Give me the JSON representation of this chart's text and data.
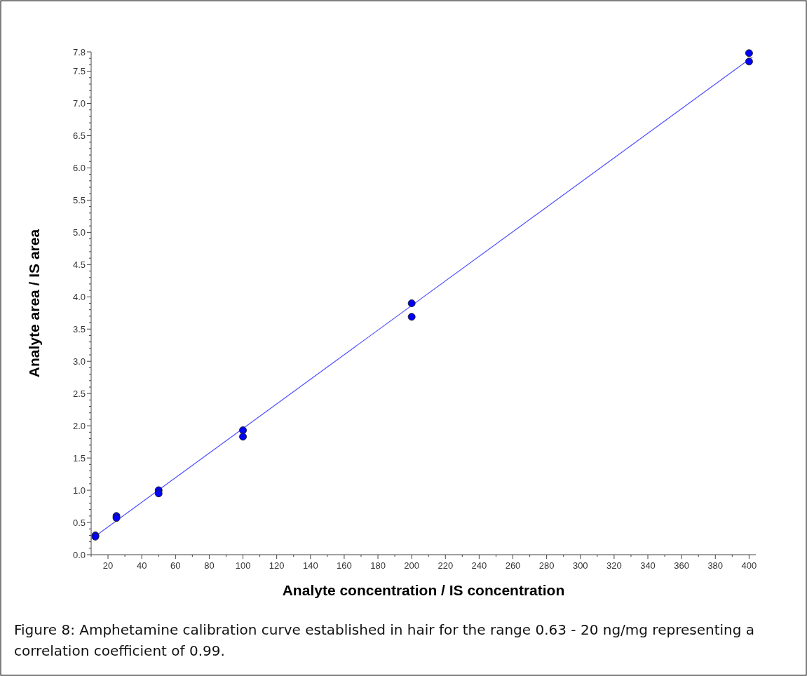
{
  "chart_data": {
    "type": "scatter",
    "xlabel": "Analyte concentration / IS concentration",
    "ylabel": "Analyte area / IS area",
    "annotations": [
      "Figure 8: Amphetamine calibration curve established in hair for the range 0.63 - 20 ng/mg representing a correlation coefficient of 0.99."
    ],
    "xlim": [
      10,
      404
    ],
    "ylim": [
      0,
      7.8
    ],
    "xticks": [
      {
        "value": 10,
        "label": null
      },
      20,
      {
        "value": 30,
        "label": null
      },
      40,
      {
        "value": 50,
        "label": null
      },
      60,
      {
        "value": 70,
        "label": null
      },
      80,
      {
        "value": 90,
        "label": null
      },
      100,
      {
        "value": 110,
        "label": null
      },
      120,
      {
        "value": 130,
        "label": null
      },
      140,
      {
        "value": 150,
        "label": null
      },
      160,
      {
        "value": 170,
        "label": null
      },
      180,
      {
        "value": 190,
        "label": null
      },
      200,
      {
        "value": 210,
        "label": null
      },
      220,
      {
        "value": 230,
        "label": null
      },
      240,
      {
        "value": 250,
        "label": null
      },
      260,
      {
        "value": 270,
        "label": null
      },
      280,
      {
        "value": 290,
        "label": null
      },
      300,
      {
        "value": 310,
        "label": null
      },
      320,
      {
        "value": 330,
        "label": null
      },
      340,
      {
        "value": 350,
        "label": null
      },
      360,
      {
        "value": 370,
        "label": null
      },
      380,
      {
        "value": 390,
        "label": null
      },
      400
    ],
    "yticks": [
      {
        "value": 0,
        "label": "0.0"
      },
      {
        "value": 0.1,
        "label": null
      },
      {
        "value": 0.2,
        "label": null
      },
      {
        "value": 0.3,
        "label": null
      },
      {
        "value": 0.4,
        "label": null
      },
      0.5,
      {
        "value": 0.6,
        "label": null
      },
      {
        "value": 0.7,
        "label": null
      },
      {
        "value": 0.8,
        "label": null
      },
      {
        "value": 0.9,
        "label": null
      },
      {
        "value": 1,
        "label": "1.0"
      },
      {
        "value": 1.1,
        "label": null
      },
      {
        "value": 1.2,
        "label": null
      },
      {
        "value": 1.3,
        "label": null
      },
      {
        "value": 1.4,
        "label": null
      },
      1.5,
      {
        "value": 1.6,
        "label": null
      },
      {
        "value": 1.7,
        "label": null
      },
      {
        "value": 1.8,
        "label": null
      },
      {
        "value": 1.9,
        "label": null
      },
      {
        "value": 2,
        "label": "2.0"
      },
      {
        "value": 2.1,
        "label": null
      },
      {
        "value": 2.2,
        "label": null
      },
      {
        "value": 2.3,
        "label": null
      },
      {
        "value": 2.4,
        "label": null
      },
      2.5,
      {
        "value": 2.6,
        "label": null
      },
      {
        "value": 2.7,
        "label": null
      },
      {
        "value": 2.8,
        "label": null
      },
      {
        "value": 2.9,
        "label": null
      },
      {
        "value": 3,
        "label": "3.0"
      },
      {
        "value": 3.1,
        "label": null
      },
      {
        "value": 3.2,
        "label": null
      },
      {
        "value": 3.3,
        "label": null
      },
      {
        "value": 3.4,
        "label": null
      },
      3.5,
      {
        "value": 3.6,
        "label": null
      },
      {
        "value": 3.7,
        "label": null
      },
      {
        "value": 3.8,
        "label": null
      },
      {
        "value": 3.9,
        "label": null
      },
      {
        "value": 4,
        "label": "4.0"
      },
      {
        "value": 4.1,
        "label": null
      },
      {
        "value": 4.2,
        "label": null
      },
      {
        "value": 4.3,
        "label": null
      },
      {
        "value": 4.4,
        "label": null
      },
      4.5,
      {
        "value": 4.6,
        "label": null
      },
      {
        "value": 4.7,
        "label": null
      },
      {
        "value": 4.8,
        "label": null
      },
      {
        "value": 4.9,
        "label": null
      },
      {
        "value": 5,
        "label": "5.0"
      },
      {
        "value": 5.1,
        "label": null
      },
      {
        "value": 5.2,
        "label": null
      },
      {
        "value": 5.3,
        "label": null
      },
      {
        "value": 5.4,
        "label": null
      },
      5.5,
      {
        "value": 5.6,
        "label": null
      },
      {
        "value": 5.7,
        "label": null
      },
      {
        "value": 5.8,
        "label": null
      },
      {
        "value": 5.9,
        "label": null
      },
      {
        "value": 6,
        "label": "6.0"
      },
      {
        "value": 6.1,
        "label": null
      },
      {
        "value": 6.2,
        "label": null
      },
      {
        "value": 6.3,
        "label": null
      },
      {
        "value": 6.4,
        "label": null
      },
      6.5,
      {
        "value": 6.6,
        "label": null
      },
      {
        "value": 6.7,
        "label": null
      },
      {
        "value": 6.8,
        "label": null
      },
      {
        "value": 6.9,
        "label": null
      },
      {
        "value": 7,
        "label": "7.0"
      },
      {
        "value": 7.1,
        "label": null
      },
      {
        "value": 7.2,
        "label": null
      },
      {
        "value": 7.3,
        "label": null
      },
      {
        "value": 7.4,
        "label": null
      },
      7.5,
      {
        "value": 7.6,
        "label": null
      },
      {
        "value": 7.7,
        "label": null
      },
      7.8
    ],
    "grid": false,
    "series": [
      {
        "marker": "circle",
        "color": "#0000ff",
        "x": [
          12.5,
          12.5,
          25,
          25,
          50,
          50,
          100,
          100,
          200,
          200,
          400,
          400
        ],
        "values": [
          0.3,
          0.28,
          0.6,
          0.57,
          1.0,
          0.95,
          1.93,
          1.83,
          3.9,
          3.69,
          7.78,
          7.65
        ]
      },
      {
        "type": "line",
        "color": "#4d4dff",
        "line_style": "solid",
        "x": [
          10,
          402
        ],
        "values": [
          0.24,
          7.72
        ]
      }
    ]
  }
}
